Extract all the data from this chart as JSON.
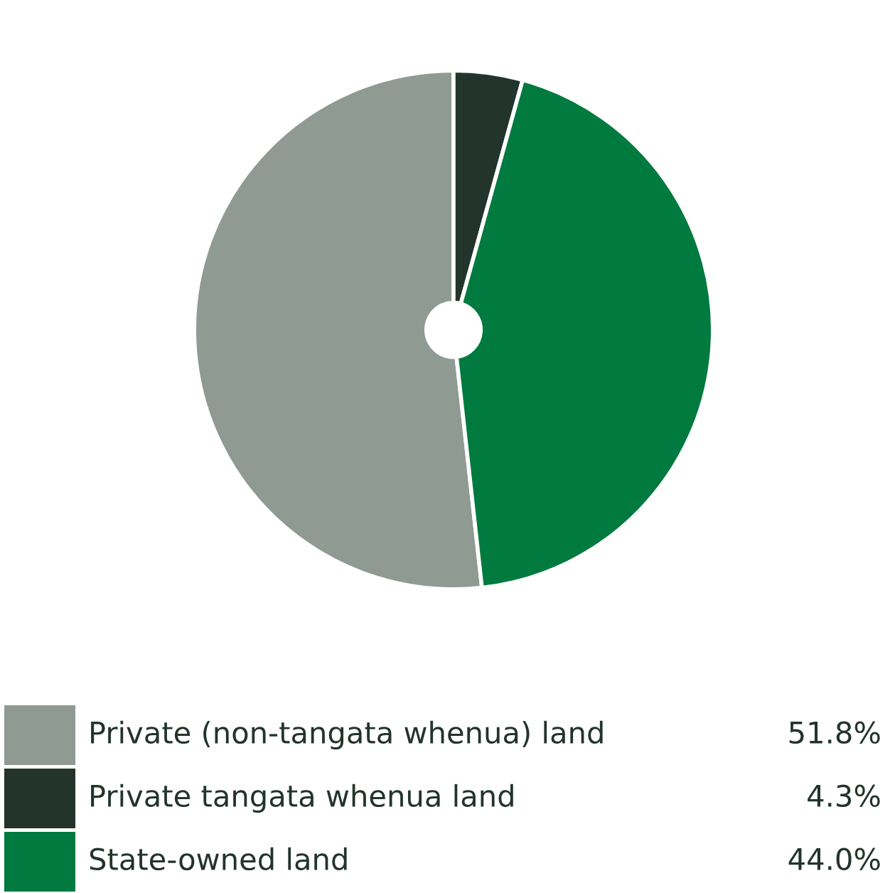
{
  "chart_data": {
    "type": "pie",
    "categories": [
      "Private (non-tangata whenua) land",
      "Private tangata whenua land",
      "State-owned land"
    ],
    "values": [
      51.8,
      4.3,
      44.0
    ],
    "colors": [
      "#8f9a93",
      "#22342b",
      "#007a3e"
    ],
    "value_labels": [
      "51.8%",
      "4.3%",
      "44.0%"
    ],
    "legend": "bottom"
  }
}
